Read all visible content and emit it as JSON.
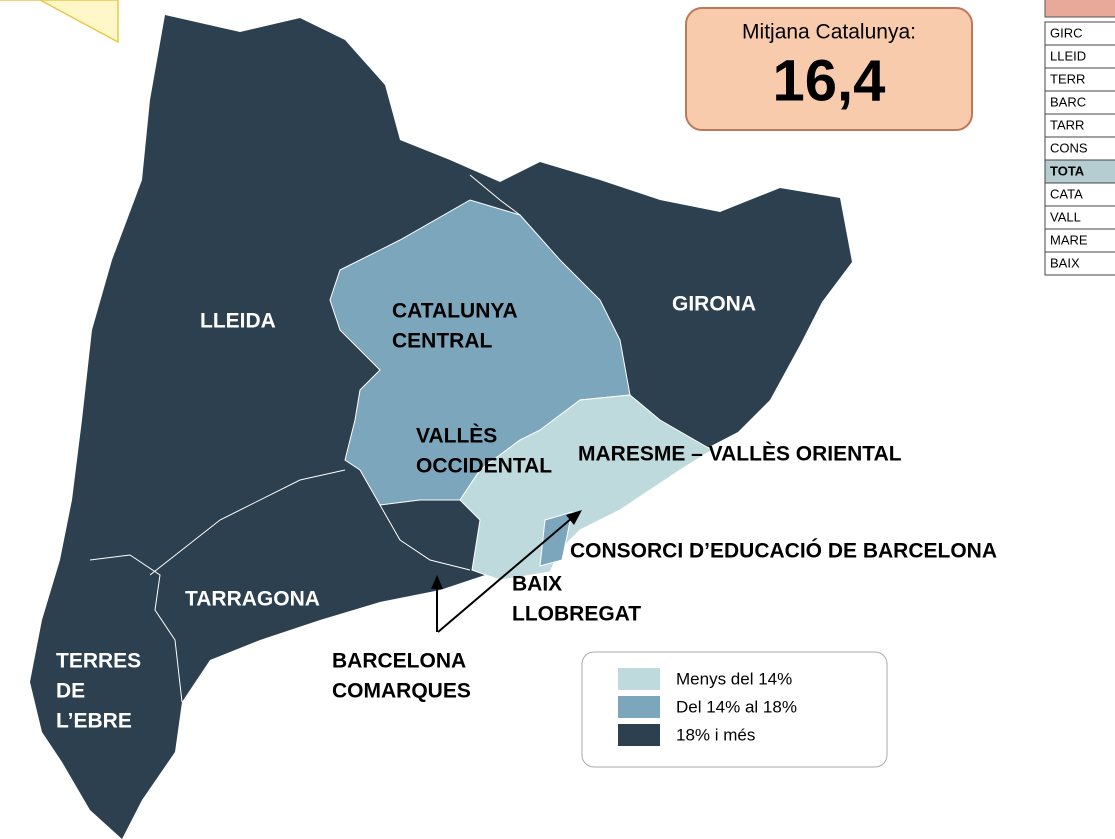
{
  "average_box": {
    "label": "Mitjana Catalunya:",
    "value": "16,4"
  },
  "regions": [
    {
      "lines": [
        "LLEIDA"
      ]
    },
    {
      "lines": [
        "CATALUNYA",
        "CENTRAL"
      ]
    },
    {
      "lines": [
        "GIRONA"
      ]
    },
    {
      "lines": [
        "VALLÈS",
        "OCCIDENTAL"
      ]
    },
    {
      "lines": [
        "MARESME – VALLÈS ORIENTAL"
      ]
    },
    {
      "lines": [
        "CONSORCI D’EDUCACIÓ DE BARCELONA"
      ]
    },
    {
      "lines": [
        "TARRAGONA"
      ]
    },
    {
      "lines": [
        "BAIX",
        "LLOBREGAT"
      ]
    },
    {
      "lines": [
        "TERRES",
        "DE",
        "L’EBRE"
      ]
    },
    {
      "lines": [
        "BARCELONA",
        "COMARQUES"
      ]
    }
  ],
  "legend": [
    {
      "label": "Menys del 14%",
      "color": "#bfdadd"
    },
    {
      "label": "Del 14% al 18%",
      "color": "#7ba6bb"
    },
    {
      "label": "18% i més",
      "color": "#2c4050"
    }
  ],
  "table": {
    "rows": [
      "GIRC",
      "LLEID",
      "TERR",
      "BARC",
      "TARR",
      "CONS",
      "TOTA",
      "CATA",
      "VALL",
      "MARE",
      "BAIX"
    ]
  }
}
